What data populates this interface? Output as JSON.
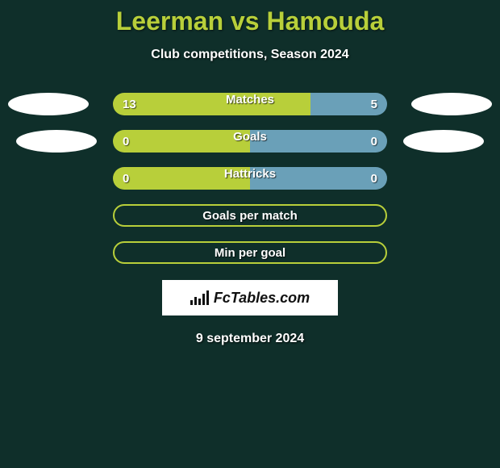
{
  "background_color": "#0f2f2a",
  "accent_color": "#b8cf3a",
  "title": {
    "player1": "Leerman",
    "vs": "vs",
    "player2": "Hamouda",
    "color": "#b8cf3a",
    "fontsize": 32
  },
  "subtitle": {
    "text": "Club competitions, Season 2024",
    "color": "#ffffff",
    "fontsize": 16
  },
  "bars": {
    "track_width": 340,
    "track_height": 28,
    "border_radius": 14,
    "left_color": "#b8cf3a",
    "right_color": "#6aa0b8",
    "label_color": "#ffffff",
    "value_color": "#ffffff",
    "label_fontsize": 15
  },
  "stats": [
    {
      "label": "Matches",
      "left_value": "13",
      "right_value": "5",
      "left_pct": 72,
      "right_pct": 28,
      "show_deco_left": true,
      "show_deco_right": true
    },
    {
      "label": "Goals",
      "left_value": "0",
      "right_value": "0",
      "left_pct": 50,
      "right_pct": 50,
      "show_deco_left": true,
      "show_deco_right": true
    },
    {
      "label": "Hattricks",
      "left_value": "0",
      "right_value": "0",
      "left_pct": 50,
      "right_pct": 50,
      "show_deco_left": false,
      "show_deco_right": false
    }
  ],
  "outlined": [
    {
      "label": "Goals per match",
      "border_color": "#b8cf3a"
    },
    {
      "label": "Min per goal",
      "border_color": "#b8cf3a"
    }
  ],
  "deco": {
    "color": "#ffffff",
    "width": 100,
    "height": 28
  },
  "brand": {
    "text": "FcTables.com",
    "background": "#ffffff",
    "text_color": "#111111",
    "fontsize": 18
  },
  "date": {
    "text": "9 september 2024",
    "color": "#ffffff",
    "fontsize": 16
  }
}
